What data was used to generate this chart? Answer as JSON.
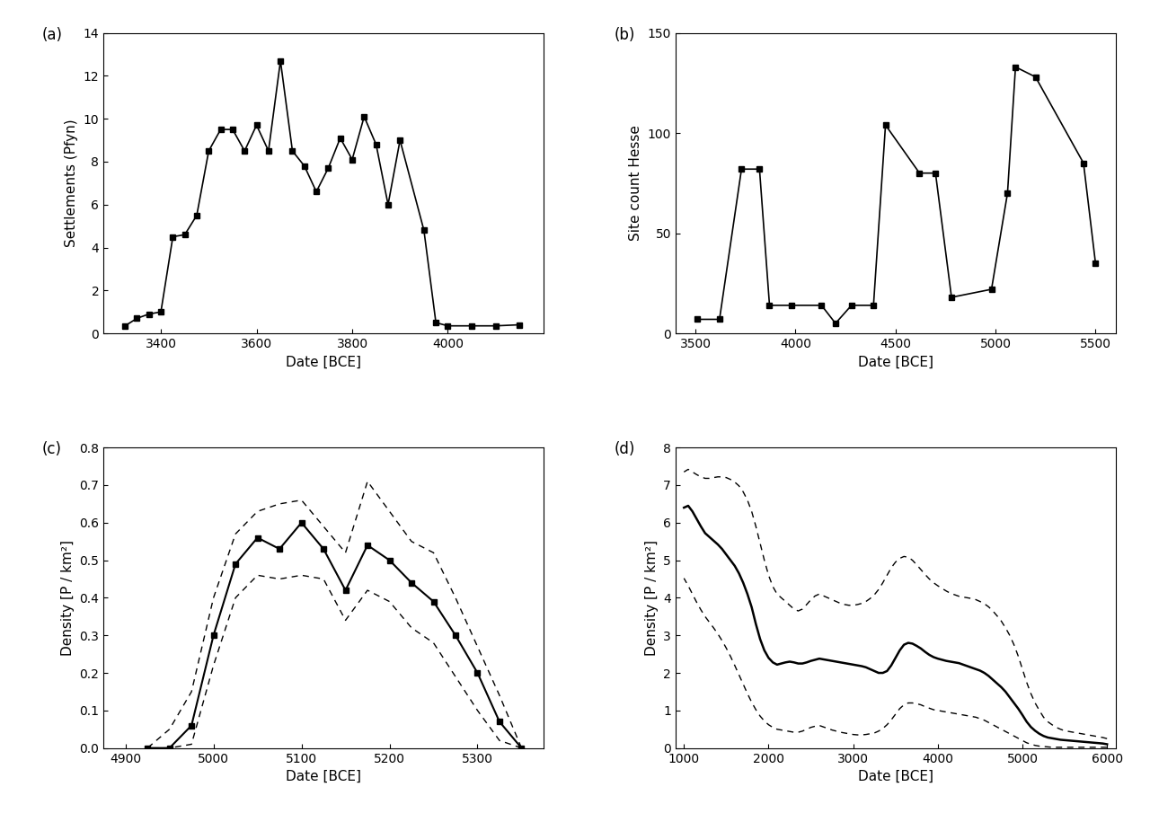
{
  "panel_a": {
    "x": [
      4150,
      4100,
      4050,
      4000,
      3975,
      3950,
      3900,
      3875,
      3850,
      3825,
      3800,
      3775,
      3750,
      3725,
      3700,
      3675,
      3650,
      3625,
      3600,
      3575,
      3550,
      3525,
      3500,
      3475,
      3450,
      3425,
      3400,
      3375,
      3350,
      3325
    ],
    "y": [
      0.4,
      0.35,
      0.35,
      0.35,
      0.5,
      4.8,
      9.0,
      6.0,
      8.8,
      10.1,
      8.1,
      9.1,
      7.7,
      6.6,
      7.8,
      8.5,
      12.7,
      8.5,
      9.7,
      8.5,
      9.5,
      9.5,
      8.5,
      5.5,
      4.6,
      4.5,
      1.0,
      0.9,
      0.7,
      0.35
    ],
    "xlabel": "Date [BCE]",
    "ylabel": "Settlements (Pfyn)",
    "ylim": [
      0,
      14
    ],
    "xlim": [
      4200,
      3280
    ],
    "xticks": [
      4000,
      3800,
      3600,
      3400
    ],
    "yticks": [
      0,
      2,
      4,
      6,
      8,
      10,
      12,
      14
    ],
    "label": "(a)"
  },
  "panel_b": {
    "x": [
      5500,
      5440,
      5200,
      5100,
      5060,
      4980,
      4780,
      4700,
      4620,
      4450,
      4390,
      4280,
      4200,
      4130,
      3980,
      3870,
      3820,
      3730,
      3620,
      3510
    ],
    "y": [
      35,
      85,
      128,
      133,
      70,
      22,
      18,
      80,
      80,
      104,
      14,
      14,
      5,
      14,
      14,
      14,
      82,
      82,
      7,
      7
    ],
    "xlabel": "Date [BCE]",
    "ylabel": "Site count Hesse",
    "ylim": [
      0,
      150
    ],
    "xlim": [
      5600,
      3400
    ],
    "xticks": [
      5500,
      5000,
      4500,
      4000,
      3500
    ],
    "yticks": [
      0,
      50,
      100,
      150
    ],
    "label": "(b)"
  },
  "panel_c": {
    "x": [
      5350,
      5325,
      5300,
      5275,
      5250,
      5225,
      5200,
      5175,
      5150,
      5125,
      5100,
      5075,
      5050,
      5025,
      5000,
      4975,
      4950,
      4925
    ],
    "y_mean": [
      0.0,
      0.07,
      0.2,
      0.3,
      0.39,
      0.44,
      0.5,
      0.54,
      0.42,
      0.53,
      0.6,
      0.53,
      0.56,
      0.49,
      0.3,
      0.06,
      0.0,
      0.0
    ],
    "y_upper": [
      0.0,
      0.14,
      0.27,
      0.4,
      0.52,
      0.55,
      0.63,
      0.71,
      0.52,
      0.59,
      0.66,
      0.65,
      0.63,
      0.57,
      0.4,
      0.15,
      0.05,
      0.0
    ],
    "y_lower": [
      0.0,
      0.02,
      0.1,
      0.19,
      0.28,
      0.32,
      0.39,
      0.42,
      0.34,
      0.45,
      0.46,
      0.45,
      0.46,
      0.4,
      0.22,
      0.01,
      0.0,
      0.0
    ],
    "xlabel": "Date [BCE]",
    "ylabel": "Density [P / km²]",
    "ylim": [
      0,
      0.8
    ],
    "xlim": [
      5375,
      4875
    ],
    "xticks": [
      5300,
      5200,
      5100,
      5000,
      4900
    ],
    "yticks": [
      0.0,
      0.1,
      0.2,
      0.3,
      0.4,
      0.5,
      0.6,
      0.7,
      0.8
    ],
    "label": "(c)"
  },
  "panel_d": {
    "x": [
      6000,
      5950,
      5900,
      5850,
      5800,
      5750,
      5700,
      5650,
      5600,
      5550,
      5500,
      5450,
      5400,
      5350,
      5300,
      5250,
      5200,
      5150,
      5100,
      5050,
      5000,
      4950,
      4900,
      4850,
      4800,
      4750,
      4700,
      4650,
      4600,
      4550,
      4500,
      4450,
      4400,
      4350,
      4300,
      4250,
      4200,
      4150,
      4100,
      4050,
      4000,
      3950,
      3900,
      3850,
      3800,
      3750,
      3700,
      3650,
      3600,
      3550,
      3500,
      3450,
      3400,
      3350,
      3300,
      3250,
      3200,
      3150,
      3100,
      3050,
      3000,
      2950,
      2900,
      2850,
      2800,
      2750,
      2700,
      2650,
      2600,
      2550,
      2500,
      2450,
      2400,
      2350,
      2300,
      2250,
      2200,
      2150,
      2100,
      2050,
      2000,
      1950,
      1900,
      1850,
      1800,
      1750,
      1700,
      1650,
      1600,
      1550,
      1500,
      1450,
      1400,
      1350,
      1300,
      1250,
      1200,
      1150,
      1100,
      1050,
      1000
    ],
    "y_mean": [
      0.1,
      0.12,
      0.13,
      0.14,
      0.15,
      0.16,
      0.17,
      0.18,
      0.19,
      0.2,
      0.21,
      0.22,
      0.24,
      0.26,
      0.28,
      0.32,
      0.38,
      0.46,
      0.56,
      0.7,
      0.88,
      1.05,
      1.2,
      1.35,
      1.5,
      1.62,
      1.72,
      1.82,
      1.92,
      2.0,
      2.06,
      2.1,
      2.14,
      2.18,
      2.22,
      2.26,
      2.28,
      2.3,
      2.32,
      2.35,
      2.38,
      2.42,
      2.48,
      2.56,
      2.65,
      2.72,
      2.78,
      2.8,
      2.75,
      2.6,
      2.4,
      2.2,
      2.05,
      2.0,
      2.0,
      2.05,
      2.1,
      2.15,
      2.18,
      2.2,
      2.22,
      2.24,
      2.26,
      2.28,
      2.3,
      2.32,
      2.34,
      2.36,
      2.38,
      2.35,
      2.32,
      2.28,
      2.25,
      2.25,
      2.28,
      2.3,
      2.28,
      2.25,
      2.22,
      2.28,
      2.4,
      2.6,
      2.9,
      3.3,
      3.75,
      4.1,
      4.4,
      4.65,
      4.85,
      5.0,
      5.15,
      5.3,
      5.42,
      5.52,
      5.62,
      5.72,
      5.9,
      6.1,
      6.3,
      6.45,
      6.4
    ],
    "y_upper": [
      0.25,
      0.28,
      0.3,
      0.32,
      0.34,
      0.36,
      0.38,
      0.4,
      0.42,
      0.44,
      0.46,
      0.5,
      0.55,
      0.62,
      0.7,
      0.82,
      1.0,
      1.2,
      1.45,
      1.75,
      2.1,
      2.45,
      2.75,
      3.0,
      3.2,
      3.38,
      3.52,
      3.65,
      3.76,
      3.84,
      3.9,
      3.95,
      3.98,
      4.0,
      4.02,
      4.04,
      4.08,
      4.12,
      4.18,
      4.25,
      4.32,
      4.4,
      4.5,
      4.62,
      4.75,
      4.88,
      5.0,
      5.08,
      5.1,
      5.05,
      4.95,
      4.8,
      4.6,
      4.4,
      4.22,
      4.08,
      3.98,
      3.9,
      3.85,
      3.82,
      3.8,
      3.8,
      3.82,
      3.85,
      3.9,
      3.95,
      4.0,
      4.05,
      4.1,
      4.05,
      3.95,
      3.82,
      3.7,
      3.65,
      3.7,
      3.8,
      3.9,
      4.0,
      4.1,
      4.3,
      4.6,
      5.0,
      5.45,
      5.9,
      6.3,
      6.6,
      6.82,
      6.98,
      7.08,
      7.15,
      7.2,
      7.22,
      7.22,
      7.2,
      7.18,
      7.18,
      7.22,
      7.28,
      7.35,
      7.42,
      7.35
    ],
    "y_lower": [
      0.02,
      0.02,
      0.02,
      0.02,
      0.02,
      0.02,
      0.02,
      0.02,
      0.02,
      0.02,
      0.02,
      0.02,
      0.02,
      0.02,
      0.03,
      0.04,
      0.05,
      0.07,
      0.1,
      0.14,
      0.2,
      0.26,
      0.32,
      0.38,
      0.44,
      0.5,
      0.56,
      0.62,
      0.68,
      0.74,
      0.78,
      0.82,
      0.84,
      0.86,
      0.88,
      0.9,
      0.92,
      0.94,
      0.96,
      0.98,
      1.0,
      1.02,
      1.06,
      1.1,
      1.15,
      1.18,
      1.2,
      1.2,
      1.15,
      1.05,
      0.9,
      0.75,
      0.62,
      0.52,
      0.45,
      0.4,
      0.38,
      0.36,
      0.35,
      0.35,
      0.36,
      0.38,
      0.4,
      0.42,
      0.45,
      0.48,
      0.52,
      0.56,
      0.6,
      0.58,
      0.55,
      0.5,
      0.45,
      0.42,
      0.42,
      0.44,
      0.46,
      0.48,
      0.5,
      0.55,
      0.62,
      0.72,
      0.85,
      1.02,
      1.22,
      1.45,
      1.7,
      1.95,
      2.2,
      2.44,
      2.66,
      2.86,
      3.04,
      3.2,
      3.35,
      3.5,
      3.68,
      3.88,
      4.1,
      4.32,
      4.52
    ],
    "xlabel": "Date [BCE]",
    "ylabel": "Density [P / km²]",
    "ylim": [
      0,
      8
    ],
    "xlim": [
      6100,
      900
    ],
    "xticks": [
      6000,
      5000,
      4000,
      3000,
      2000,
      1000
    ],
    "yticks": [
      0,
      1,
      2,
      3,
      4,
      5,
      6,
      7,
      8
    ],
    "label": "(d)"
  }
}
